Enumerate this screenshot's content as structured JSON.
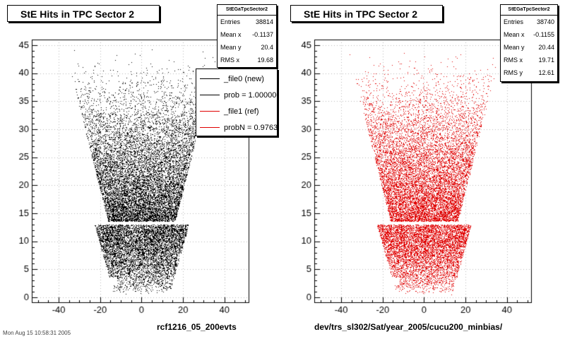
{
  "chart_data": [
    {
      "type": "scatter",
      "title": "StE Hits in TPC Sector 2",
      "xlabel": "rcf1216_05_200evts",
      "ylabel": "",
      "xlim": [
        -53,
        52
      ],
      "ylim": [
        -1,
        46
      ],
      "xticks": [
        -40,
        -20,
        0,
        20,
        40
      ],
      "yticks": [
        0,
        5,
        10,
        15,
        20,
        25,
        30,
        35,
        40,
        45
      ],
      "color": "#000000",
      "stats": {
        "name": "StEGaTpcSector2",
        "rows": [
          {
            "label": "Entries",
            "value": "38814"
          },
          {
            "label": "Mean x",
            "value": "-0.1137"
          },
          {
            "label": "Mean y",
            "value": "20.4"
          },
          {
            "label": "RMS x",
            "value": "19.68"
          }
        ]
      },
      "legend": {
        "entries": [
          {
            "label": "_file0 (new)",
            "color": "#000000"
          },
          {
            "label": "prob = 1.000000",
            "color": "#000000"
          },
          {
            "label": "_file1 (ref)",
            "color": "#e00000"
          },
          {
            "label": "probN = 0.976327",
            "color": "#e00000"
          }
        ]
      },
      "grid": true,
      "seed": 7
    },
    {
      "type": "scatter",
      "title": "StE Hits in TPC Sector 2",
      "xlabel": "dev/trs_sl302/Sat/year_2005/cucu200_minbias/",
      "ylabel": "",
      "xlim": [
        -53,
        52
      ],
      "ylim": [
        -1,
        46
      ],
      "xticks": [
        -40,
        -20,
        0,
        20,
        40
      ],
      "yticks": [
        0,
        5,
        10,
        15,
        20,
        25,
        30,
        35,
        40,
        45
      ],
      "color": "#e00000",
      "stats": {
        "name": "StEGaTpcSector2",
        "rows": [
          {
            "label": "Entries",
            "value": "38740"
          },
          {
            "label": "Mean x",
            "value": "-0.1155"
          },
          {
            "label": "Mean y",
            "value": "20.44"
          },
          {
            "label": "RMS x",
            "value": "19.71"
          },
          {
            "label": "RMS y",
            "value": "12.61"
          }
        ]
      },
      "grid": true,
      "seed": 13
    }
  ],
  "footer": {
    "datestamp": "Mon Aug 15 10:58:31 2005"
  }
}
